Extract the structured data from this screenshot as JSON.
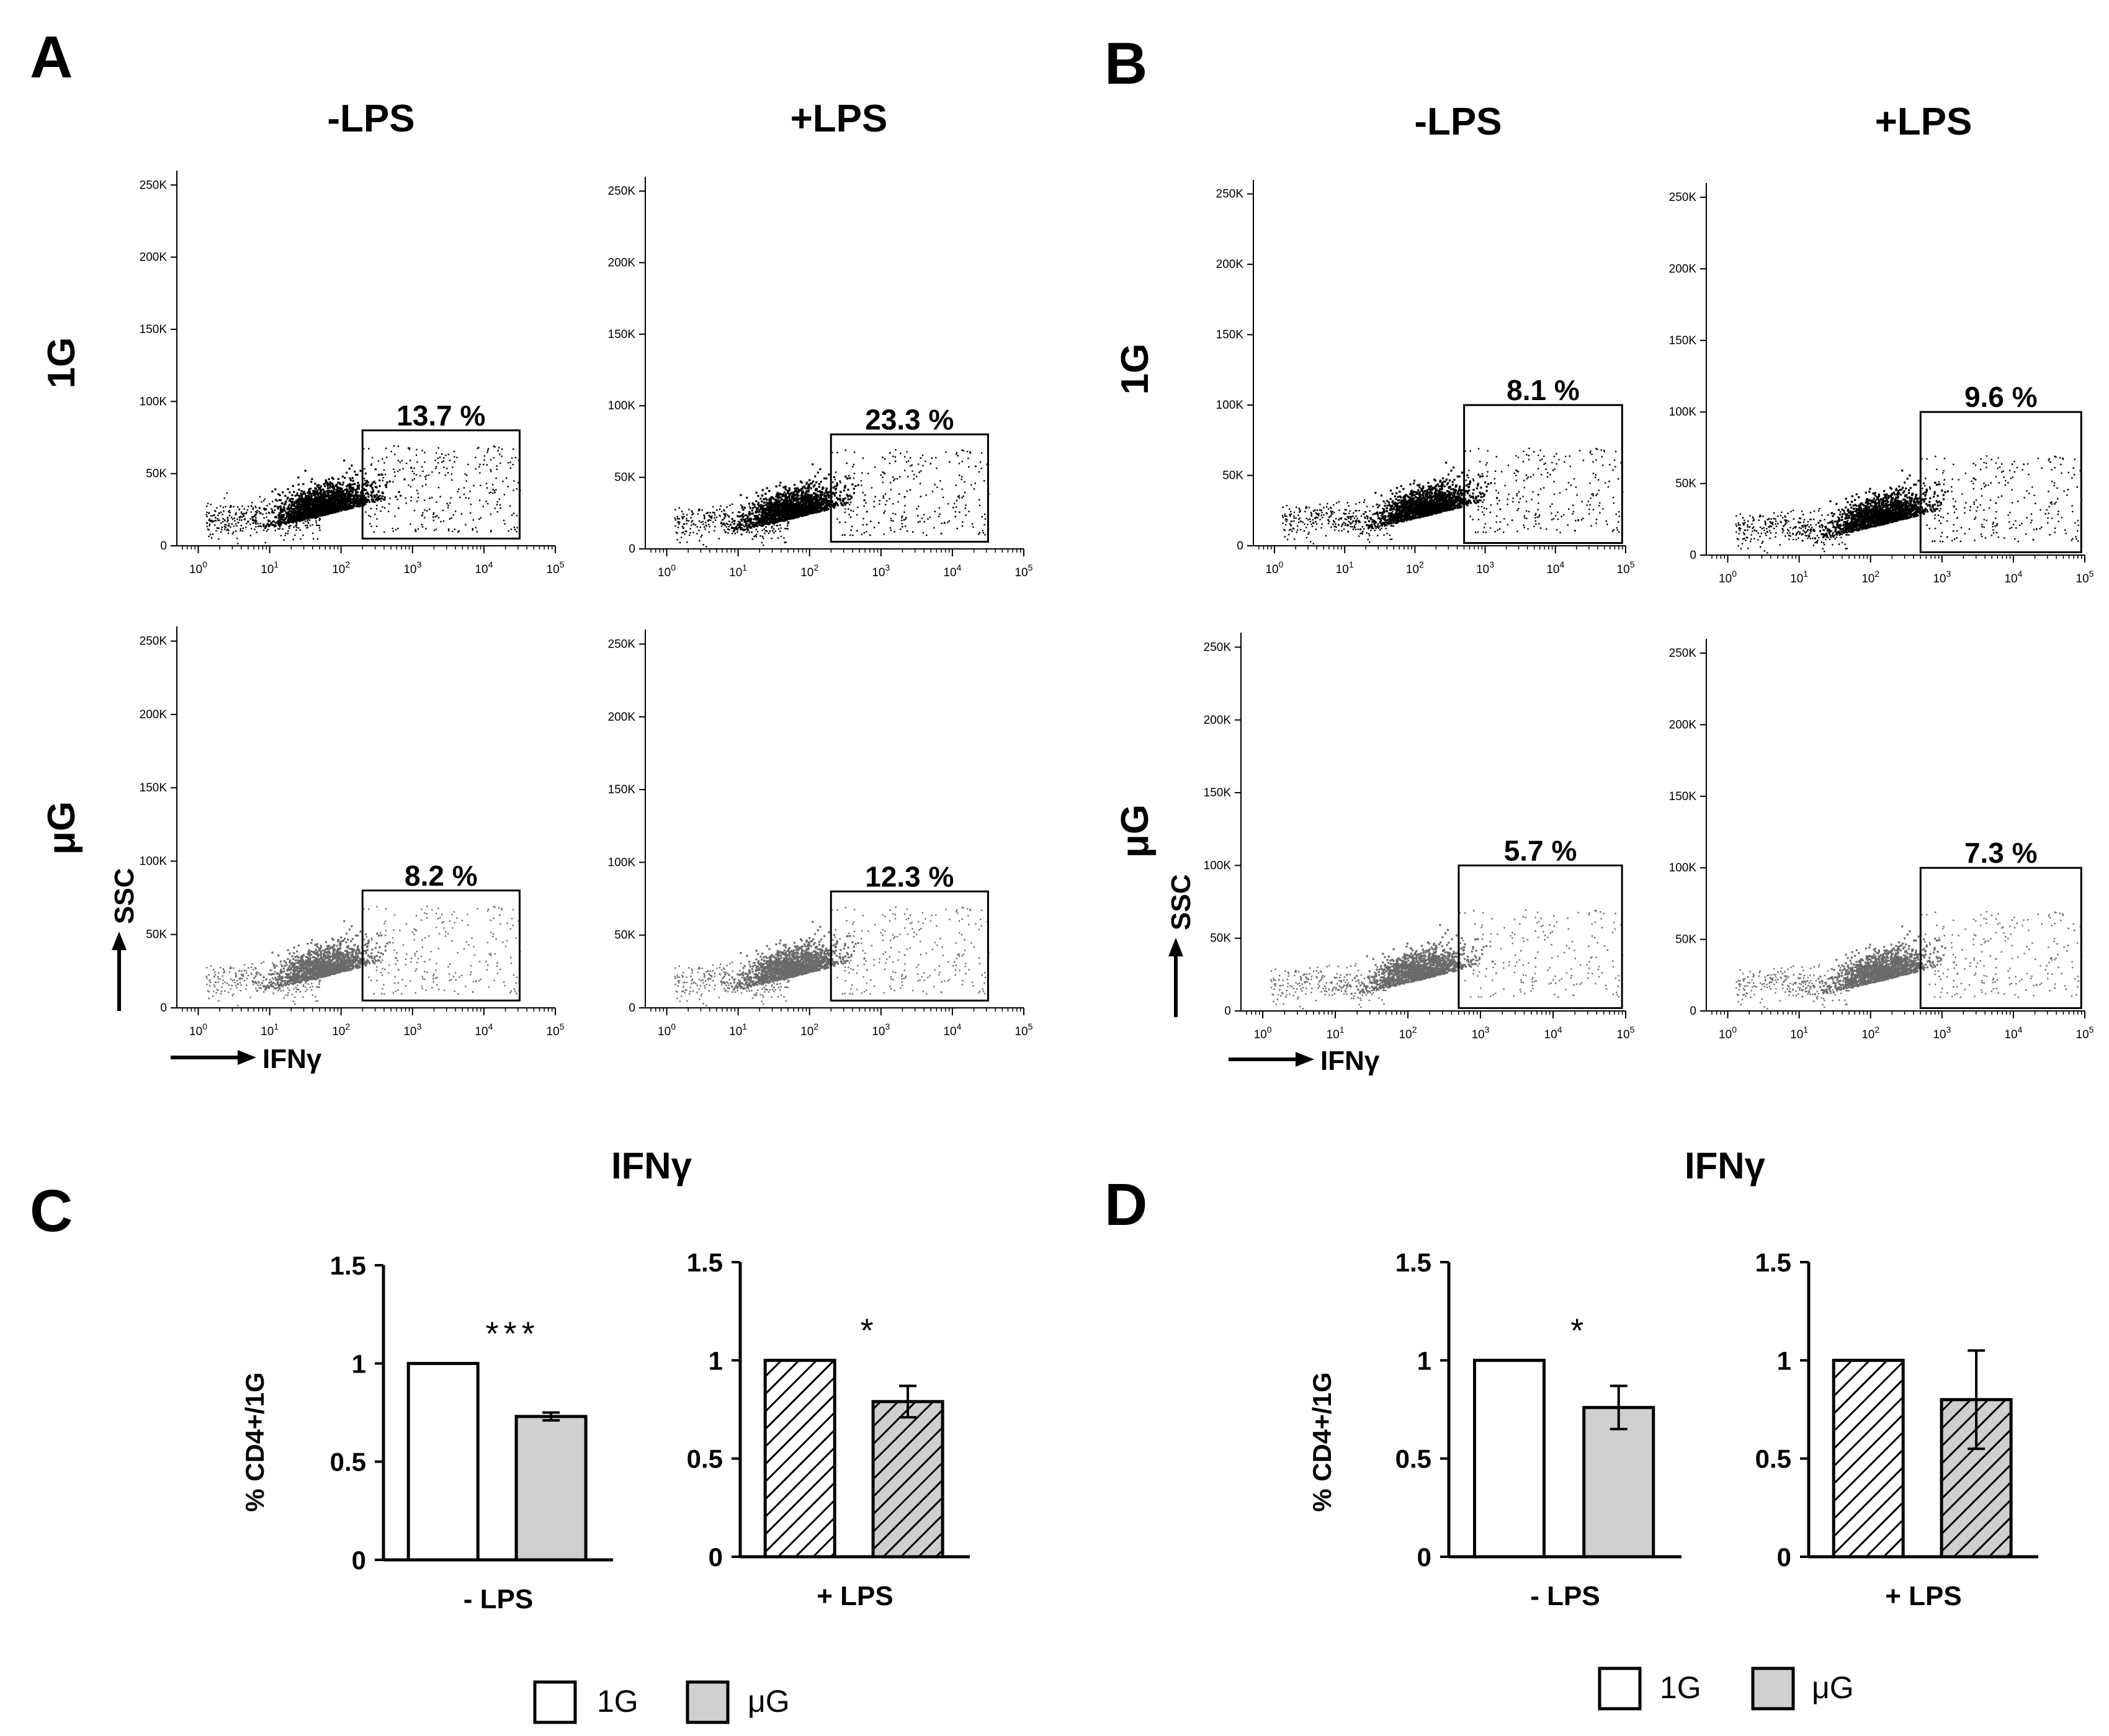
{
  "panels": {
    "A": "A",
    "B": "B",
    "C": "C",
    "D": "D"
  },
  "column_labels": {
    "minus": "-LPS",
    "plus": "+LPS"
  },
  "row_labels": {
    "g1": "1G",
    "ug": "μG"
  },
  "flow_axes": {
    "x_name": "IFNγ",
    "y_name": "SSC"
  },
  "bar_common": {
    "title": "IFNγ",
    "ylabel": "% CD4+/1G"
  },
  "legend": {
    "g1": "1G",
    "ug": "μG"
  },
  "colors": {
    "bar_1g": "#ffffff",
    "bar_ug": "#d0d0d0",
    "dots_1g": "#000000",
    "dots_ug": "#6a6a6a"
  },
  "chart_data": [
    {
      "type": "scatter",
      "panel": "A",
      "condition": "1G -LPS",
      "gate_percent": "13.7 %",
      "xlabel": "IFNγ",
      "ylabel": "SSC",
      "x_ticks": [
        "10^0",
        "10^1",
        "10^2",
        "10^3",
        "10^4",
        "10^5"
      ],
      "y_ticks": [
        "0",
        "50K",
        "100K",
        "150K",
        "200K",
        "250K"
      ],
      "xlim_log10": [
        -0.3,
        5
      ],
      "ylim": [
        0,
        260000
      ],
      "gate_log10_x": [
        2.3,
        4.5
      ],
      "gate_y": [
        5000,
        80000
      ]
    },
    {
      "type": "scatter",
      "panel": "A",
      "condition": "1G +LPS",
      "gate_percent": "23.3 %",
      "xlabel": "IFNγ",
      "ylabel": "SSC",
      "x_ticks": [
        "10^0",
        "10^1",
        "10^2",
        "10^3",
        "10^4",
        "10^5"
      ],
      "y_ticks": [
        "0",
        "50K",
        "100K",
        "150K",
        "200K",
        "250K"
      ],
      "xlim_log10": [
        -0.3,
        5
      ],
      "ylim": [
        0,
        260000
      ],
      "gate_log10_x": [
        2.3,
        4.5
      ],
      "gate_y": [
        5000,
        80000
      ]
    },
    {
      "type": "scatter",
      "panel": "A",
      "condition": "μG -LPS",
      "gate_percent": "8.2 %",
      "xlabel": "IFNγ",
      "ylabel": "SSC",
      "x_ticks": [
        "10^0",
        "10^1",
        "10^2",
        "10^3",
        "10^4",
        "10^5"
      ],
      "y_ticks": [
        "0",
        "50K",
        "100K",
        "150K",
        "200K",
        "250K"
      ],
      "xlim_log10": [
        -0.3,
        5
      ],
      "ylim": [
        0,
        260000
      ],
      "gate_log10_x": [
        2.3,
        4.5
      ],
      "gate_y": [
        5000,
        80000
      ]
    },
    {
      "type": "scatter",
      "panel": "A",
      "condition": "μG +LPS",
      "gate_percent": "12.3 %",
      "xlabel": "IFNγ",
      "ylabel": "SSC",
      "x_ticks": [
        "10^0",
        "10^1",
        "10^2",
        "10^3",
        "10^4",
        "10^5"
      ],
      "y_ticks": [
        "0",
        "50K",
        "100K",
        "150K",
        "200K",
        "250K"
      ],
      "xlim_log10": [
        -0.3,
        5
      ],
      "ylim": [
        0,
        260000
      ],
      "gate_log10_x": [
        2.3,
        4.5
      ],
      "gate_y": [
        5000,
        80000
      ]
    },
    {
      "type": "scatter",
      "panel": "B",
      "condition": "1G -LPS",
      "gate_percent": "8.1 %",
      "xlabel": "IFNγ",
      "ylabel": "SSC",
      "x_ticks": [
        "10^0",
        "10^1",
        "10^2",
        "10^3",
        "10^4",
        "10^5"
      ],
      "y_ticks": [
        "0",
        "50K",
        "100K",
        "150K",
        "200K",
        "250K"
      ],
      "xlim_log10": [
        -0.3,
        5
      ],
      "ylim": [
        0,
        260000
      ],
      "gate_log10_x": [
        2.7,
        4.95
      ],
      "gate_y": [
        2000,
        100000
      ]
    },
    {
      "type": "scatter",
      "panel": "B",
      "condition": "1G +LPS",
      "gate_percent": "9.6 %",
      "xlabel": "IFNγ",
      "ylabel": "SSC",
      "x_ticks": [
        "10^0",
        "10^1",
        "10^2",
        "10^3",
        "10^4",
        "10^5"
      ],
      "y_ticks": [
        "0",
        "50K",
        "100K",
        "150K",
        "200K",
        "250K"
      ],
      "xlim_log10": [
        -0.3,
        5
      ],
      "ylim": [
        0,
        260000
      ],
      "gate_log10_x": [
        2.7,
        4.95
      ],
      "gate_y": [
        2000,
        100000
      ]
    },
    {
      "type": "scatter",
      "panel": "B",
      "condition": "μG -LPS",
      "gate_percent": "5.7 %",
      "xlabel": "IFNγ",
      "ylabel": "SSC",
      "x_ticks": [
        "10^0",
        "10^1",
        "10^2",
        "10^3",
        "10^4",
        "10^5"
      ],
      "y_ticks": [
        "0",
        "50K",
        "100K",
        "150K",
        "200K",
        "250K"
      ],
      "xlim_log10": [
        -0.3,
        5
      ],
      "ylim": [
        0,
        260000
      ],
      "gate_log10_x": [
        2.7,
        4.95
      ],
      "gate_y": [
        2000,
        100000
      ]
    },
    {
      "type": "scatter",
      "panel": "B",
      "condition": "μG +LPS",
      "gate_percent": "7.3 %",
      "xlabel": "IFNγ",
      "ylabel": "SSC",
      "x_ticks": [
        "10^0",
        "10^1",
        "10^2",
        "10^3",
        "10^4",
        "10^5"
      ],
      "y_ticks": [
        "0",
        "50K",
        "100K",
        "150K",
        "200K",
        "250K"
      ],
      "xlim_log10": [
        -0.3,
        5
      ],
      "ylim": [
        0,
        260000
      ],
      "gate_log10_x": [
        2.7,
        4.95
      ],
      "gate_y": [
        2000,
        100000
      ]
    },
    {
      "type": "bar",
      "panel": "C",
      "title": "IFNγ",
      "xlabel": "- LPS",
      "ylabel": "% CD4+/1G",
      "categories": [
        "1G",
        "μG"
      ],
      "values": [
        1.0,
        0.73
      ],
      "errors": [
        0.0,
        0.02
      ],
      "ylim": [
        0,
        1.5
      ],
      "y_ticks": [
        "0",
        "0.5",
        "1",
        "1.5"
      ],
      "significance": "***",
      "pattern": "solid"
    },
    {
      "type": "bar",
      "panel": "C",
      "title": "IFNγ",
      "xlabel": "+ LPS",
      "ylabel": "% CD4+/1G",
      "categories": [
        "1G",
        "μG"
      ],
      "values": [
        1.0,
        0.79
      ],
      "errors": [
        0.0,
        0.08
      ],
      "ylim": [
        0,
        1.5
      ],
      "y_ticks": [
        "0",
        "0.5",
        "1",
        "1.5"
      ],
      "significance": "*",
      "pattern": "hatched"
    },
    {
      "type": "bar",
      "panel": "D",
      "title": "IFNγ",
      "xlabel": "- LPS",
      "ylabel": "% CD4+/1G",
      "categories": [
        "1G",
        "μG"
      ],
      "values": [
        1.0,
        0.76
      ],
      "errors": [
        0.0,
        0.11
      ],
      "ylim": [
        0,
        1.5
      ],
      "y_ticks": [
        "0",
        "0.5",
        "1",
        "1.5"
      ],
      "significance": "*",
      "pattern": "solid"
    },
    {
      "type": "bar",
      "panel": "D",
      "title": "IFNγ",
      "xlabel": "+ LPS",
      "ylabel": "% CD4+/1G",
      "categories": [
        "1G",
        "μG"
      ],
      "values": [
        1.0,
        0.8
      ],
      "errors": [
        0.0,
        0.25
      ],
      "ylim": [
        0,
        1.5
      ],
      "y_ticks": [
        "0",
        "0.5",
        "1",
        "1.5"
      ],
      "significance": "",
      "pattern": "hatched"
    }
  ]
}
